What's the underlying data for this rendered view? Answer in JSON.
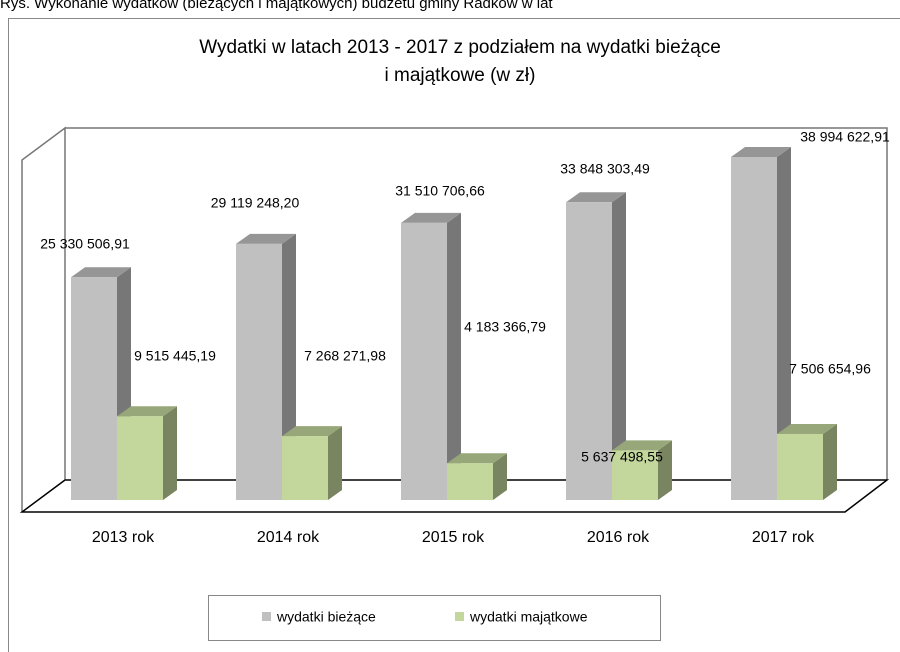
{
  "chart_data": {
    "type": "bar3d",
    "caption": "Rys. Wykonanie wydatków (bieżących i majątkowych) budżetu gminy Radków w lat",
    "title": "Wydatki w latach 2013 - 2017 z podziałem na wydatki bieżące",
    "subtitle": "i majątkowe (w zł)",
    "categories": [
      "2013 rok",
      "2014 rok",
      "2015 rok",
      "2016 rok",
      "2017 rok"
    ],
    "series": [
      {
        "name": "wydatki bieżące",
        "color": "#c0c0c0",
        "values": [
          25330506.91,
          29119248.2,
          31510706.66,
          33848303.49,
          38994622.91
        ],
        "value_labels": [
          "25 330 506,91",
          "29 119 248,20",
          "31 510 706,66",
          "33 848 303,49",
          "38 994 622,91"
        ]
      },
      {
        "name": "wydatki majątkowe",
        "color": "#c3d69b",
        "values": [
          9515445.19,
          7268271.98,
          4183366.79,
          5637498.55,
          7506654.96
        ],
        "value_labels": [
          "9 515 445,19",
          "7 268 271,98",
          "4 183 366,79",
          "5 637 498,55",
          "7 506 654,96"
        ]
      }
    ],
    "legend": "bottom"
  }
}
